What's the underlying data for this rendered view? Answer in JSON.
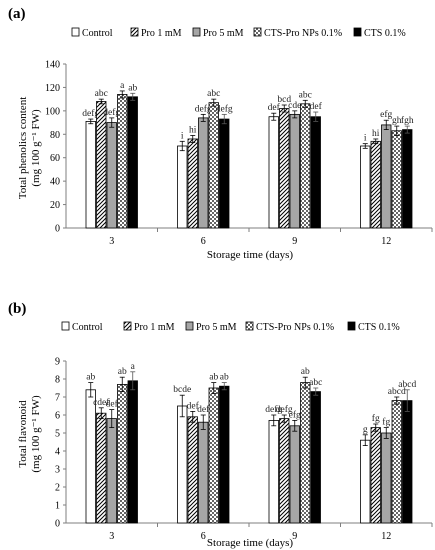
{
  "colors": {
    "control": "#ffffff",
    "pro5": "#a6a6a6",
    "cts": "#000000",
    "axis": "#7f7f7f",
    "stroke": "#000000"
  },
  "chart_data": [
    {
      "panel_label": "(a)",
      "type": "bar",
      "categories": [
        "3",
        "6",
        "9",
        "12"
      ],
      "xlabel": "Storage time (days)",
      "ylabel_line1": "Total phenolics content",
      "ylabel_line2": "(mg 100 g⁻¹ FW)",
      "ylim": [
        0,
        140
      ],
      "yticks": [
        0,
        20,
        40,
        60,
        80,
        100,
        120,
        140
      ],
      "grid": false,
      "legend_position": "top",
      "series": [
        {
          "name": "Control",
          "pattern": "white",
          "values": [
            91,
            70,
            95,
            70
          ],
          "errors": [
            2,
            4,
            3,
            2
          ],
          "labels": [
            "defg",
            "i",
            "def",
            "i"
          ]
        },
        {
          "name": "Pro 1 mM",
          "pattern": "diagonal",
          "values": [
            108,
            76,
            102,
            74
          ],
          "errors": [
            2,
            3,
            3,
            2
          ],
          "labels": [
            "abc",
            "hi",
            "bcd",
            "hi"
          ]
        },
        {
          "name": "Pro 5 mM",
          "pattern": "gray",
          "values": [
            90,
            94,
            97,
            88
          ],
          "errors": [
            4,
            3,
            3,
            4
          ],
          "labels": [
            "defg",
            "defg",
            "cde",
            "efg"
          ]
        },
        {
          "name": "CTS-Pro NPs 0.1%",
          "pattern": "checker",
          "values": [
            114,
            107,
            106,
            83
          ],
          "errors": [
            3,
            3,
            3,
            4
          ],
          "labels": [
            "a",
            "abc",
            "abc",
            "gh"
          ]
        },
        {
          "name": "CTS 0.1%",
          "pattern": "black",
          "values": [
            112,
            93,
            95,
            84
          ],
          "errors": [
            3,
            4,
            4,
            3
          ],
          "labels": [
            "ab",
            "defg",
            "def",
            "fgh"
          ]
        }
      ]
    },
    {
      "panel_label": "(b)",
      "type": "bar",
      "categories": [
        "3",
        "6",
        "9",
        "12"
      ],
      "xlabel": "Storage time (days)",
      "ylabel_line1": "Total flavonoid",
      "ylabel_line2": "(mg 100 g⁻¹ FW)",
      "ylim": [
        0,
        9
      ],
      "yticks": [
        0,
        1,
        2,
        3,
        4,
        5,
        6,
        7,
        8,
        9
      ],
      "grid": false,
      "legend_position": "top",
      "series": [
        {
          "name": "Control",
          "pattern": "white",
          "values": [
            7.4,
            6.5,
            5.7,
            4.6
          ],
          "errors": [
            0.4,
            0.6,
            0.3,
            0.3
          ],
          "labels": [
            "ab",
            "bcde",
            "defg",
            "g"
          ]
        },
        {
          "name": "Pro 1 mM",
          "pattern": "diagonal",
          "values": [
            6.1,
            5.9,
            5.8,
            5.3
          ],
          "errors": [
            0.3,
            0.3,
            0.2,
            0.2
          ],
          "labels": [
            "cdef",
            "def",
            "defg",
            "fg"
          ]
        },
        {
          "name": "Pro 5 mM",
          "pattern": "gray",
          "values": [
            5.8,
            5.6,
            5.4,
            5.0
          ],
          "errors": [
            0.5,
            0.4,
            0.3,
            0.3
          ],
          "labels": [
            "def",
            "def",
            "efg",
            "fg"
          ]
        },
        {
          "name": "CTS-Pro NPs 0.1%",
          "pattern": "checker",
          "values": [
            7.7,
            7.5,
            7.8,
            6.8
          ],
          "errors": [
            0.4,
            0.3,
            0.3,
            0.2
          ],
          "labels": [
            "ab",
            "ab",
            "ab",
            "abcd"
          ]
        },
        {
          "name": "CTS 0.1%",
          "pattern": "black",
          "values": [
            7.9,
            7.6,
            7.3,
            6.8
          ],
          "errors": [
            0.5,
            0.2,
            0.2,
            0.6
          ],
          "labels": [
            "a",
            "ab",
            "abc",
            "abcd"
          ]
        }
      ]
    }
  ]
}
